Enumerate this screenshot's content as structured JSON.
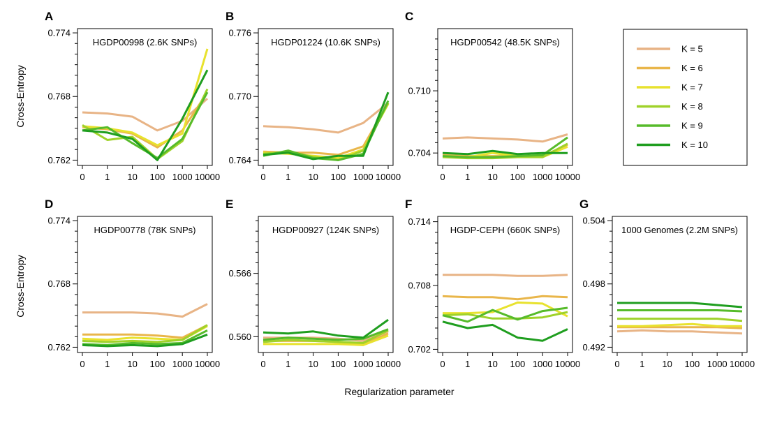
{
  "figure": {
    "ylabel": "Cross-Entropy",
    "xlabel": "Regularization parameter"
  },
  "legend": {
    "entries": [
      {
        "label": "K  =  5",
        "color": "#e8b486"
      },
      {
        "label": "K  =  6",
        "color": "#e9b64a"
      },
      {
        "label": "K  =  7",
        "color": "#e8e22e"
      },
      {
        "label": "K  =  8",
        "color": "#9fd22a"
      },
      {
        "label": "K  =  9",
        "color": "#56bb2a"
      },
      {
        "label": "K  =  10",
        "color": "#1f9e1f"
      }
    ]
  },
  "chart_data": [
    {
      "type": "line",
      "letter": "A",
      "title": "HGDP00998 (2.6K SNPs)",
      "categories": [
        "0",
        "1",
        "10",
        "100",
        "1000",
        "10000"
      ],
      "ylim": [
        0.7615,
        0.7744
      ],
      "yticks": [
        0.762,
        0.768,
        0.774
      ],
      "yminor": [
        0.763,
        0.764,
        0.765,
        0.766,
        0.767,
        0.769,
        0.77,
        0.771,
        0.772,
        0.773
      ],
      "show_ylabel": true,
      "series": [
        {
          "name": "K = 5",
          "values": [
            0.7665,
            0.7664,
            0.7661,
            0.7648,
            0.7657,
            0.7678
          ]
        },
        {
          "name": "K = 6",
          "values": [
            0.7651,
            0.7649,
            0.7645,
            0.7632,
            0.7648,
            0.7684
          ]
        },
        {
          "name": "K = 7",
          "values": [
            0.7652,
            0.765,
            0.7646,
            0.7634,
            0.7645,
            0.7725
          ]
        },
        {
          "name": "K = 8",
          "values": [
            0.7653,
            0.7639,
            0.7642,
            0.7621,
            0.7638,
            0.7687
          ]
        },
        {
          "name": "K = 9",
          "values": [
            0.7648,
            0.7651,
            0.7636,
            0.7622,
            0.764,
            0.7684
          ]
        },
        {
          "name": "K = 10",
          "values": [
            0.7648,
            0.7646,
            0.764,
            0.762,
            0.7659,
            0.7705
          ]
        }
      ]
    },
    {
      "type": "line",
      "letter": "B",
      "title": "HGDP01224 (10.6K SNPs)",
      "categories": [
        "0",
        "1",
        "10",
        "100",
        "1000",
        "10000"
      ],
      "ylim": [
        0.7635,
        0.7764
      ],
      "yticks": [
        0.764,
        0.77,
        0.776
      ],
      "yminor": [
        0.765,
        0.766,
        0.767,
        0.768,
        0.769,
        0.771,
        0.772,
        0.773,
        0.774,
        0.775
      ],
      "show_ylabel": false,
      "series": [
        {
          "name": "K = 5",
          "values": [
            0.7672,
            0.7671,
            0.7669,
            0.7666,
            0.7675,
            0.7694
          ]
        },
        {
          "name": "K = 6",
          "values": [
            0.7648,
            0.7647,
            0.7647,
            0.7645,
            0.7653,
            0.7694
          ]
        },
        {
          "name": "K = 7",
          "values": [
            0.7647,
            0.7646,
            0.7644,
            0.7642,
            0.765,
            0.7693
          ]
        },
        {
          "name": "K = 8",
          "values": [
            0.7646,
            0.7648,
            0.7643,
            0.764,
            0.7649,
            0.7694
          ]
        },
        {
          "name": "K = 9",
          "values": [
            0.7644,
            0.7649,
            0.7642,
            0.764,
            0.7646,
            0.7696
          ]
        },
        {
          "name": "K = 10",
          "values": [
            0.7645,
            0.7647,
            0.7641,
            0.7644,
            0.7644,
            0.7704
          ]
        }
      ]
    },
    {
      "type": "line",
      "letter": "C",
      "title": "HGDP00542 (48.5K SNPs)",
      "categories": [
        "0",
        "1",
        "10",
        "100",
        "1000",
        "10000"
      ],
      "ylim": [
        0.7028,
        0.716
      ],
      "yticks": [
        0.704,
        0.71
      ],
      "yminor": [
        0.705,
        0.706,
        0.707,
        0.708,
        0.709,
        0.711,
        0.712,
        0.713,
        0.714,
        0.715
      ],
      "show_ylabel": false,
      "series": [
        {
          "name": "K = 5",
          "values": [
            0.7054,
            0.7055,
            0.7054,
            0.7053,
            0.7051,
            0.7058
          ]
        },
        {
          "name": "K = 6",
          "values": [
            0.7038,
            0.7037,
            0.7037,
            0.7037,
            0.7037,
            0.7048
          ]
        },
        {
          "name": "K = 7",
          "values": [
            0.7037,
            0.7036,
            0.704,
            0.7037,
            0.7036,
            0.7046
          ]
        },
        {
          "name": "K = 8",
          "values": [
            0.7036,
            0.7035,
            0.7035,
            0.7036,
            0.7036,
            0.7049
          ]
        },
        {
          "name": "K = 9",
          "values": [
            0.7037,
            0.7036,
            0.7036,
            0.7037,
            0.7038,
            0.7055
          ]
        },
        {
          "name": "K = 10",
          "values": [
            0.704,
            0.7039,
            0.7042,
            0.7039,
            0.704,
            0.704
          ]
        }
      ]
    },
    {
      "type": "line",
      "letter": "D",
      "title": "HGDP00778 (78K SNPs)",
      "categories": [
        "0",
        "1",
        "10",
        "100",
        "1000",
        "10000"
      ],
      "ylim": [
        0.7615,
        0.7744
      ],
      "yticks": [
        0.762,
        0.768,
        0.774
      ],
      "yminor": [
        0.763,
        0.764,
        0.765,
        0.766,
        0.767,
        0.769,
        0.77,
        0.771,
        0.772,
        0.773
      ],
      "show_ylabel": true,
      "series": [
        {
          "name": "K = 5",
          "values": [
            0.7653,
            0.7653,
            0.7653,
            0.7652,
            0.7649,
            0.7661
          ]
        },
        {
          "name": "K = 6",
          "values": [
            0.7632,
            0.7632,
            0.7632,
            0.7631,
            0.7629,
            0.7641
          ]
        },
        {
          "name": "K = 7",
          "values": [
            0.7628,
            0.7627,
            0.7629,
            0.7628,
            0.7627,
            0.764
          ]
        },
        {
          "name": "K = 8",
          "values": [
            0.7626,
            0.7625,
            0.7626,
            0.7625,
            0.7627,
            0.7641
          ]
        },
        {
          "name": "K = 9",
          "values": [
            0.7623,
            0.7622,
            0.7624,
            0.7623,
            0.7624,
            0.7636
          ]
        },
        {
          "name": "K = 10",
          "values": [
            0.7622,
            0.7621,
            0.7622,
            0.7621,
            0.7623,
            0.7632
          ]
        }
      ]
    },
    {
      "type": "line",
      "letter": "E",
      "title": "HGDP00927 (124K SNPs)",
      "categories": [
        "0",
        "1",
        "10",
        "100",
        "1000",
        "10000"
      ],
      "ylim": [
        0.5585,
        0.5714
      ],
      "yticks": [
        0.56,
        0.566
      ],
      "yminor": [
        0.561,
        0.562,
        0.563,
        0.564,
        0.565,
        0.567,
        0.568,
        0.569,
        0.57,
        0.571
      ],
      "show_ylabel": false,
      "series": [
        {
          "name": "K = 5",
          "values": [
            0.5599,
            0.5599,
            0.5599,
            0.5598,
            0.5596,
            0.5605
          ]
        },
        {
          "name": "K = 6",
          "values": [
            0.5596,
            0.5596,
            0.5596,
            0.5595,
            0.5593,
            0.5603
          ]
        },
        {
          "name": "K = 7",
          "values": [
            0.5593,
            0.5593,
            0.5593,
            0.5593,
            0.5592,
            0.5601
          ]
        },
        {
          "name": "K = 8",
          "values": [
            0.5595,
            0.5597,
            0.5596,
            0.5595,
            0.5594,
            0.5606
          ]
        },
        {
          "name": "K = 9",
          "values": [
            0.5597,
            0.5599,
            0.5598,
            0.5597,
            0.5598,
            0.5607
          ]
        },
        {
          "name": "K = 10",
          "values": [
            0.5604,
            0.5603,
            0.5605,
            0.5601,
            0.5599,
            0.5616
          ]
        }
      ]
    },
    {
      "type": "line",
      "letter": "F",
      "title": "HGDP-CEPH (660K SNPs)",
      "categories": [
        "0",
        "1",
        "10",
        "100",
        "1000",
        "10000"
      ],
      "ylim": [
        0.7017,
        0.7145
      ],
      "yticks": [
        0.702,
        0.708,
        0.714
      ],
      "yminor": [
        0.703,
        0.704,
        0.705,
        0.706,
        0.707,
        0.709,
        0.71,
        0.711,
        0.712,
        0.713
      ],
      "show_ylabel": false,
      "series": [
        {
          "name": "K = 5",
          "values": [
            0.709,
            0.709,
            0.709,
            0.7089,
            0.7089,
            0.709
          ]
        },
        {
          "name": "K = 6",
          "values": [
            0.707,
            0.7069,
            0.7069,
            0.7067,
            0.707,
            0.7069
          ]
        },
        {
          "name": "K = 7",
          "values": [
            0.7054,
            0.7054,
            0.7055,
            0.7064,
            0.7063,
            0.7051
          ]
        },
        {
          "name": "K = 8",
          "values": [
            0.7052,
            0.7053,
            0.7049,
            0.7049,
            0.705,
            0.7055
          ]
        },
        {
          "name": "K = 9",
          "values": [
            0.7052,
            0.7046,
            0.7057,
            0.7048,
            0.7056,
            0.7059
          ]
        },
        {
          "name": "K = 10",
          "values": [
            0.7046,
            0.704,
            0.7043,
            0.7031,
            0.7028,
            0.7039
          ]
        }
      ]
    },
    {
      "type": "line",
      "letter": "G",
      "title": "1000 Genomes (2.2M SNPs)",
      "categories": [
        "0",
        "1",
        "10",
        "100",
        "1000",
        "10000"
      ],
      "ylim": [
        0.4915,
        0.5044
      ],
      "yticks": [
        0.492,
        0.498,
        0.504
      ],
      "yminor": [
        0.493,
        0.494,
        0.495,
        0.496,
        0.497,
        0.499,
        0.5,
        0.501,
        0.502,
        0.503
      ],
      "show_ylabel": false,
      "series": [
        {
          "name": "K = 5",
          "values": [
            0.4935,
            0.4936,
            0.4935,
            0.4935,
            0.4934,
            0.4933
          ]
        },
        {
          "name": "K = 6",
          "values": [
            0.4939,
            0.4939,
            0.4939,
            0.4939,
            0.4939,
            0.4938
          ]
        },
        {
          "name": "K = 7",
          "values": [
            0.494,
            0.494,
            0.4941,
            0.4942,
            0.494,
            0.494
          ]
        },
        {
          "name": "K = 8",
          "values": [
            0.4947,
            0.4947,
            0.4947,
            0.4947,
            0.4947,
            0.4945
          ]
        },
        {
          "name": "K = 9",
          "values": [
            0.4955,
            0.4955,
            0.4955,
            0.4955,
            0.4955,
            0.4954
          ]
        },
        {
          "name": "K = 10",
          "values": [
            0.4962,
            0.4962,
            0.4962,
            0.4962,
            0.496,
            0.4958
          ]
        }
      ]
    }
  ]
}
